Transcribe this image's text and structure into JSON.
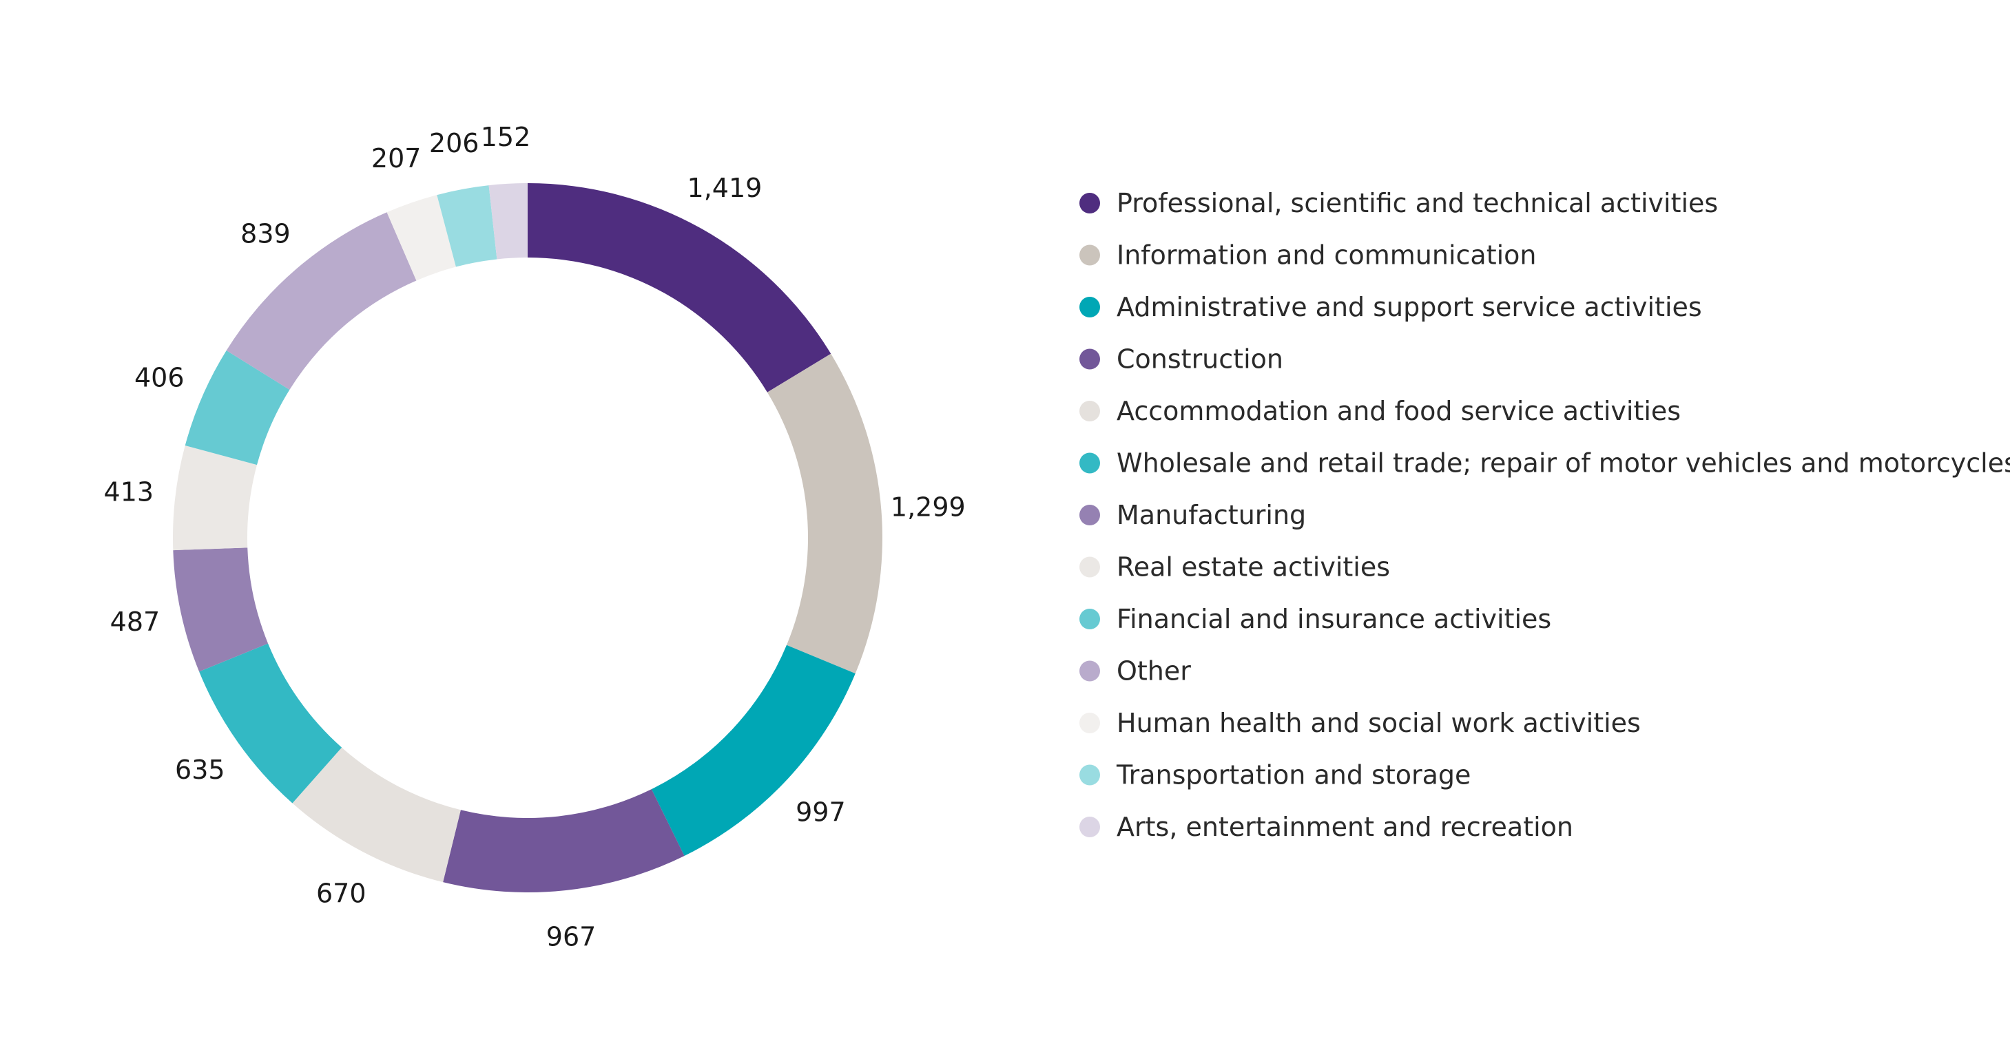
{
  "chart_data": {
    "type": "pie",
    "donut": true,
    "legend_position": "right",
    "slices": [
      {
        "label": "Professional, scientific and technical activities",
        "value": 1419,
        "value_label": "1,419",
        "color": "#4f2d7f"
      },
      {
        "label": "Information and communication",
        "value": 1299,
        "value_label": "1,299",
        "color": "#cbc4bc"
      },
      {
        "label": "Administrative and support service activities",
        "value": 997,
        "value_label": "997",
        "color": "#00a7b5"
      },
      {
        "label": "Construction",
        "value": 967,
        "value_label": "967",
        "color": "#725799"
      },
      {
        "label": "Accommodation and food service activities",
        "value": 670,
        "value_label": "670",
        "color": "#e5e1dd"
      },
      {
        "label": "Wholesale and retail trade; repair of motor vehicles and motorcycles",
        "value": 635,
        "value_label": "635",
        "color": "#33b9c4"
      },
      {
        "label": "Manufacturing",
        "value": 487,
        "value_label": "487",
        "color": "#9581b2"
      },
      {
        "label": "Real estate activities",
        "value": 413,
        "value_label": "413",
        "color": "#ebe8e5"
      },
      {
        "label": "Financial and insurance activities",
        "value": 406,
        "value_label": "406",
        "color": "#66cad2"
      },
      {
        "label": "Other",
        "value": 839,
        "value_label": "839",
        "color": "#b9abcc"
      },
      {
        "label": "Human health and social work activities",
        "value": 207,
        "value_label": "207",
        "color": "#f2f0ee"
      },
      {
        "label": "Transportation and storage",
        "value": 206,
        "value_label": "206",
        "color": "#99dce1"
      },
      {
        "label": "Arts, entertainment and recreation",
        "value": 152,
        "value_label": "152",
        "color": "#dcd5e5"
      }
    ]
  }
}
